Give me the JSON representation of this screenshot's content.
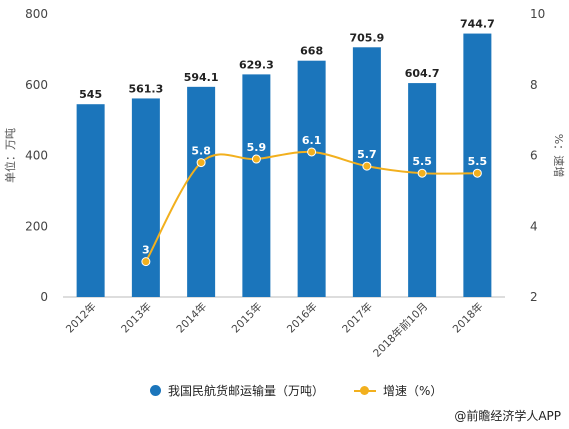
{
  "chart_data": {
    "type": "bar+line",
    "categories": [
      "2012年",
      "2013年",
      "2014年",
      "2015年",
      "2016年",
      "2017年",
      "2018年前10月",
      "2018年"
    ],
    "series": [
      {
        "name": "我国民航货邮运输量（万吨）",
        "type": "bar",
        "axis": "left",
        "values": [
          545,
          561.3,
          594.1,
          629.3,
          668,
          705.9,
          604.7,
          744.7
        ],
        "labels": [
          "545",
          "561.3",
          "594.1",
          "629.3",
          "668",
          "705.9",
          "604.7",
          "744.7"
        ],
        "color": "#1b75bb"
      },
      {
        "name": "增速（%）",
        "type": "line",
        "axis": "right",
        "values": [
          null,
          3,
          5.8,
          5.9,
          6.1,
          5.7,
          5.5,
          5.5
        ],
        "labels": [
          "",
          "3",
          "5.8",
          "5.9",
          "6.1",
          "5.7",
          "5.5",
          "5.5"
        ],
        "color": "#f2b01e"
      }
    ],
    "y_left": {
      "label": "单位：万吨",
      "min": 0,
      "max": 800,
      "ticks": [
        "0",
        "200",
        "400",
        "600",
        "800"
      ]
    },
    "y_right": {
      "label": "%：速增",
      "min": 2,
      "max": 10,
      "ticks": [
        "2",
        "4",
        "6",
        "8",
        "10"
      ]
    },
    "grid": false,
    "legend_position": "bottom"
  },
  "legend": {
    "bar_label": "我国民航货邮运输量（万吨）",
    "line_label": "增速（%）"
  },
  "brand": "@前瞻经济学人APP"
}
